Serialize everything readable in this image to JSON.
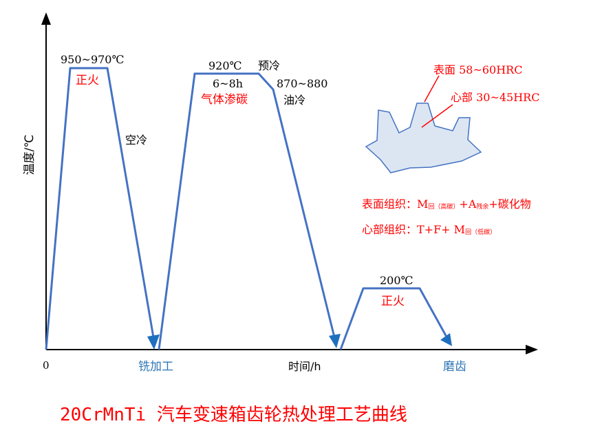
{
  "axes": {
    "ylabel": "温度/℃",
    "xlabel": "时间/h",
    "origin": "0"
  },
  "stages": {
    "normalize1_temp": "950~970℃",
    "normalize1_label": "正火",
    "aircool": "空冷",
    "milling": "铣加工",
    "carburize_temp": "920℃",
    "carburize_time": "6~8h",
    "carburize_label": "气体渗碳",
    "precool": "预冷",
    "quench_temp": "870~880",
    "oilcool": "油冷",
    "temper_temp": "200℃",
    "temper_label": "正火",
    "grinding": "磨齿"
  },
  "gear": {
    "surface_hardness": "表面 58~60HRC",
    "core_hardness": "心部 30~45HRC"
  },
  "structure": {
    "surface_prefix": "表面组织：M",
    "surface_sub1": "回（高碳）",
    "surface_mid": "+A",
    "surface_sub2": "残余",
    "surface_suffix": "+碳化物",
    "core_prefix": "心部组织：T+F+ M",
    "core_sub": "回（低碳）"
  },
  "title": "20CrMnTi 汽车变速箱齿轮热处理工艺曲线",
  "colors": {
    "curve": "#4472C4",
    "accent_red": "#FF0000",
    "label_blue": "#2E75B6",
    "gear_fill": "#DCE6F2",
    "gear_stroke": "#4472C4"
  }
}
